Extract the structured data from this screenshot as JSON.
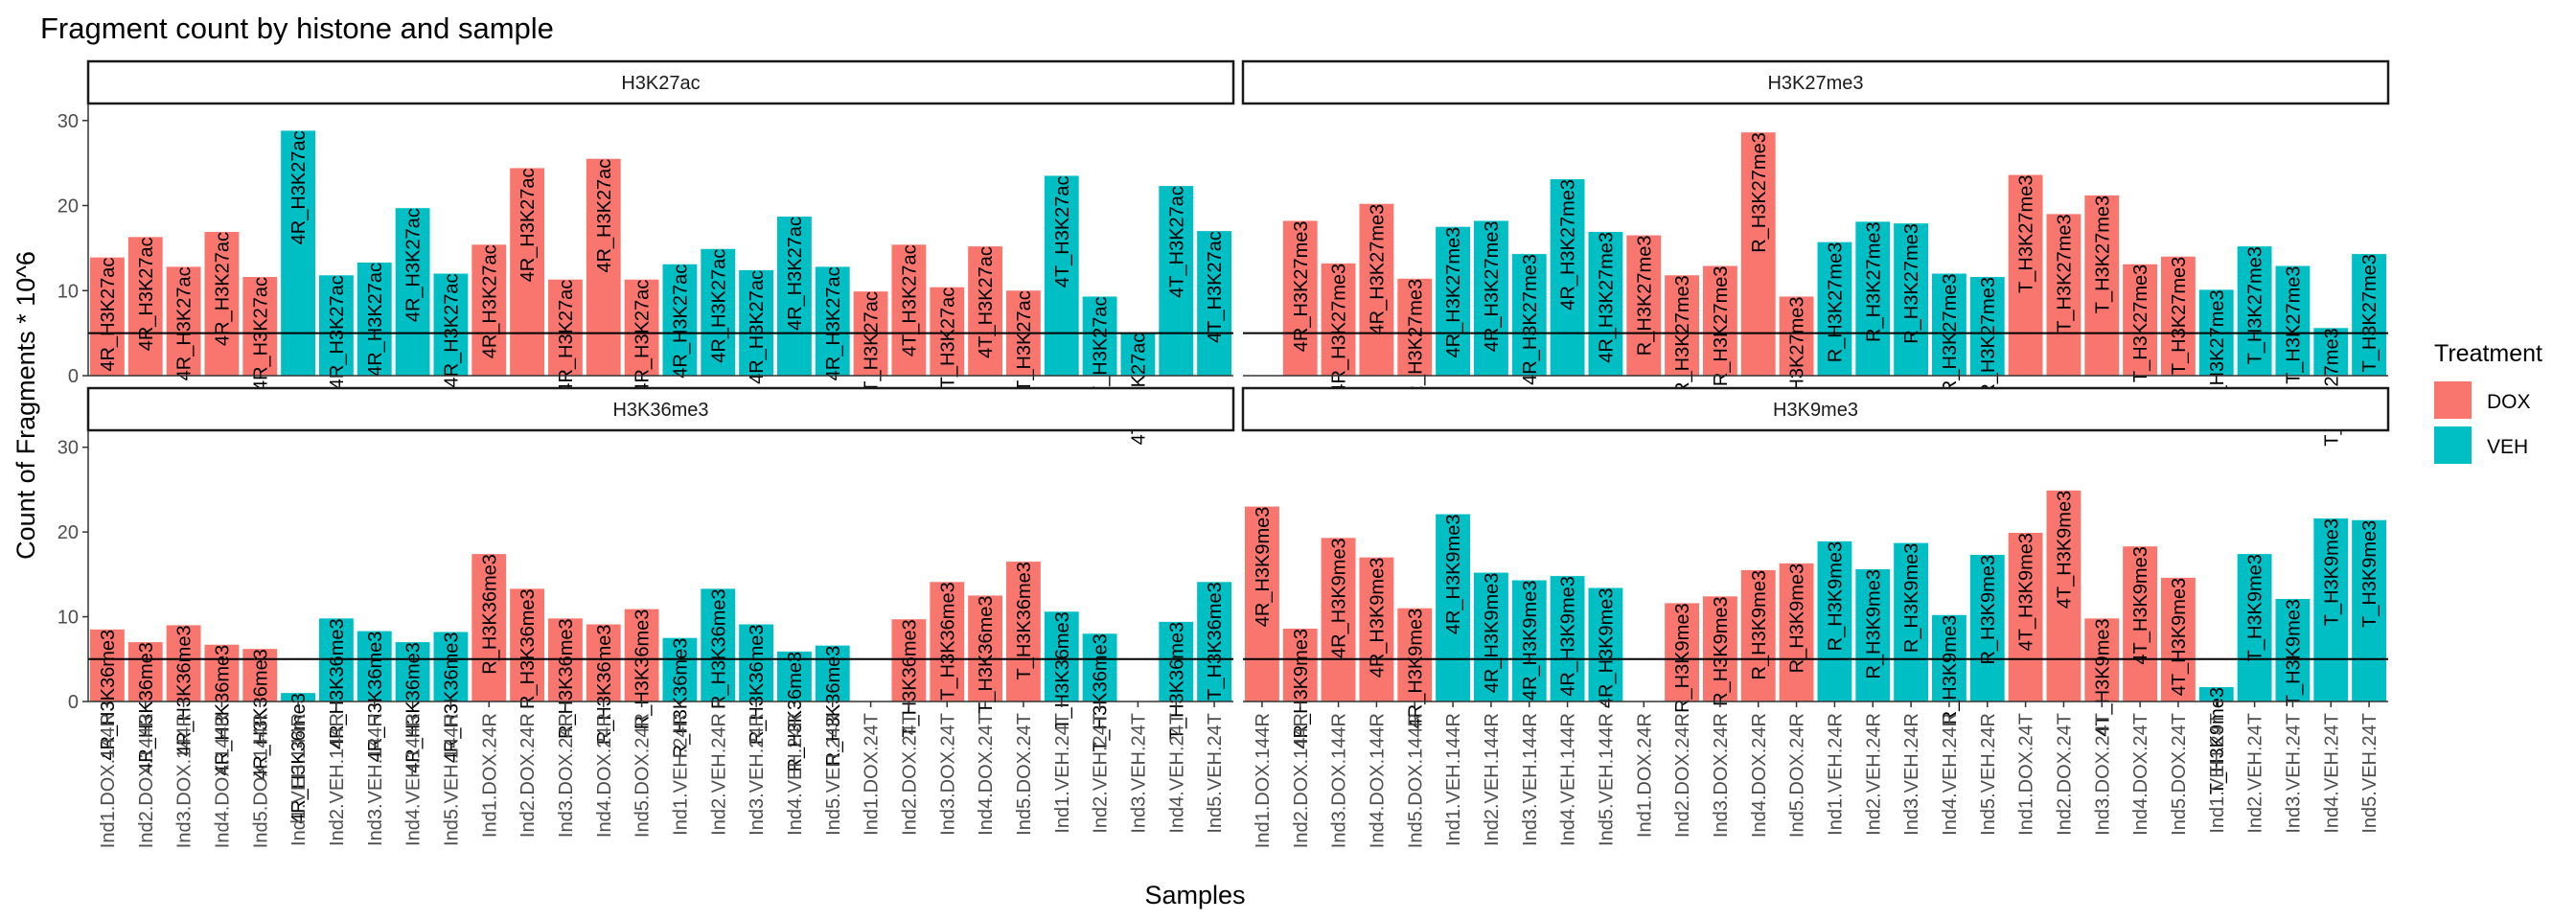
{
  "chart_data": {
    "type": "bar",
    "title": "Fragment count by histone and sample",
    "xlabel": "Samples",
    "ylabel": "Count of Fragments * 10^6",
    "ylim": [
      0,
      32
    ],
    "yticks": [
      0,
      10,
      20,
      30
    ],
    "reference_line": 5,
    "legend": {
      "title": "Treatment",
      "position": "right",
      "entries": [
        {
          "name": "DOX",
          "color": "#F8766D"
        },
        {
          "name": "VEH",
          "color": "#00BFC4"
        }
      ]
    },
    "facets_left": {
      "samples": [
        "Ind1.DOX.144R",
        "Ind2.DOX.144R",
        "Ind3.DOX.144R",
        "Ind4.DOX.144R",
        "Ind5.DOX.144R",
        "Ind1.VEH.144R",
        "Ind2.VEH.144R",
        "Ind3.VEH.144R",
        "Ind4.VEH.144R",
        "Ind5.VEH.144R",
        "Ind1.DOX.24R",
        "Ind2.DOX.24R",
        "Ind3.DOX.24R",
        "Ind4.DOX.24R",
        "Ind5.DOX.24R",
        "Ind1.VEH.24R",
        "Ind2.VEH.24R",
        "Ind3.VEH.24R",
        "Ind4.VEH.24R",
        "Ind5.VEH.24R",
        "Ind1.DOX.24T",
        "Ind2.DOX.24T",
        "Ind3.DOX.24T",
        "Ind4.DOX.24T",
        "Ind5.DOX.24T",
        "Ind1.VEH.24T",
        "Ind2.VEH.24T",
        "Ind3.VEH.24T",
        "Ind4.VEH.24T",
        "Ind5.VEH.24T"
      ],
      "treatment": [
        "DOX",
        "DOX",
        "DOX",
        "DOX",
        "DOX",
        "VEH",
        "VEH",
        "VEH",
        "VEH",
        "VEH",
        "DOX",
        "DOX",
        "DOX",
        "DOX",
        "DOX",
        "VEH",
        "VEH",
        "VEH",
        "VEH",
        "VEH",
        "DOX",
        "DOX",
        "DOX",
        "DOX",
        "DOX",
        "VEH",
        "VEH",
        "VEH",
        "VEH",
        "VEH"
      ]
    },
    "facets_right": {
      "samples": [
        "Ind1.DOX.144R",
        "Ind2.DOX.144R",
        "Ind3.DOX.144R",
        "Ind4.DOX.144R",
        "Ind5.DOX.144R",
        "Ind1.VEH.144R",
        "Ind2.VEH.144R",
        "Ind3.VEH.144R",
        "Ind4.VEH.144R",
        "Ind5.VEH.144R",
        "Ind1.DOX.24R",
        "Ind2.DOX.24R",
        "Ind3.DOX.24R",
        "Ind4.DOX.24R",
        "Ind5.DOX.24R",
        "Ind1.VEH.24R",
        "Ind2.VEH.24R",
        "Ind3.VEH.24R",
        "Ind4.VEH.24R",
        "Ind5.VEH.24R",
        "Ind1.DOX.24T",
        "Ind2.DOX.24T",
        "Ind3.DOX.24T",
        "Ind4.DOX.24T",
        "Ind5.DOX.24T",
        "Ind1.VEH.24T",
        "Ind2.VEH.24T",
        "Ind3.VEH.24T",
        "Ind4.VEH.24T",
        "Ind5.VEH.24T"
      ],
      "treatment": [
        "DOX",
        "DOX",
        "DOX",
        "DOX",
        "DOX",
        "VEH",
        "VEH",
        "VEH",
        "VEH",
        "VEH",
        "DOX",
        "DOX",
        "DOX",
        "DOX",
        "DOX",
        "VEH",
        "VEH",
        "VEH",
        "VEH",
        "VEH",
        "DOX",
        "DOX",
        "DOX",
        "DOX",
        "DOX",
        "VEH",
        "VEH",
        "VEH",
        "VEH",
        "VEH"
      ]
    },
    "panels": [
      {
        "name": "H3K27ac",
        "values": [
          13.9,
          16.3,
          12.8,
          16.9,
          11.6,
          28.8,
          11.8,
          13.3,
          19.7,
          12.0,
          15.4,
          24.4,
          11.3,
          25.5,
          11.3,
          13.1,
          14.9,
          12.4,
          18.7,
          12.8,
          9.9,
          15.4,
          10.4,
          15.2,
          10.0,
          23.5,
          9.3,
          5.0,
          22.3,
          17.0
        ],
        "labels": [
          "4R_H3K27ac",
          "4R_H3K27ac",
          "4R_H3K27ac",
          "4R_H3K27ac",
          "4R_H3K27ac",
          "4R_H3K27ac",
          "4R_H3K27ac",
          "4R_H3K27ac",
          "4R_H3K27ac",
          "4R_H3K27ac",
          "4R_H3K27ac",
          "4R_H3K27ac",
          "4R_H3K27ac",
          "4R_H3K27ac",
          "4R_H3K27ac",
          "4R_H3K27ac",
          "4R_H3K27ac",
          "4R_H3K27ac",
          "4R_H3K27ac",
          "4R_H3K27ac",
          "4T_H3K27ac",
          "4T_H3K27ac",
          "4T_H3K27ac",
          "4T_H3K27ac",
          "4T_H3K27ac",
          "4T_H3K27ac",
          "4T_H3K27ac",
          "4T_H3K27ac",
          "4T_H3K27ac",
          "4T_H3K27ac"
        ]
      },
      {
        "name": "H3K27me3",
        "values": [
          0,
          18.2,
          13.2,
          20.2,
          11.4,
          17.5,
          18.2,
          14.3,
          23.1,
          16.9,
          16.5,
          11.8,
          12.9,
          28.6,
          9.3,
          15.7,
          18.1,
          17.9,
          12.0,
          11.6,
          23.6,
          19.0,
          21.2,
          13.1,
          14.0,
          10.1,
          15.2,
          12.9,
          5.6,
          14.3
        ],
        "labels": [
          "",
          "4R_H3K27me3",
          "4R_H3K27me3",
          "4R_H3K27me3",
          "4R_H3K27me3",
          "4R_H3K27me3",
          "4R_H3K27me3",
          "4R_H3K27me3",
          "4R_H3K27me3",
          "4R_H3K27me3",
          "R_H3K27me3",
          "R_H3K27me3",
          "R_H3K27me3",
          "R_H3K27me3",
          "R_H3K27me3",
          "R_H3K27me3",
          "R_H3K27me3",
          "R_H3K27me3",
          "R_H3K27me3",
          "R_H3K27me3",
          "T_H3K27me3",
          "T_H3K27me3",
          "T_H3K27me3",
          "T_H3K27me3",
          "T_H3K27me3",
          "T_H3K27me3",
          "T_H3K27me3",
          "T_H3K27me3",
          "T_H3K27me3",
          "T_H3K27me3"
        ]
      },
      {
        "name": "H3K36me3",
        "values": [
          8.5,
          7.0,
          9.0,
          6.7,
          6.2,
          1.0,
          9.8,
          8.3,
          7.0,
          8.2,
          17.4,
          13.3,
          9.8,
          9.1,
          10.9,
          7.5,
          13.3,
          9.1,
          5.9,
          6.6,
          0,
          9.7,
          14.1,
          12.5,
          16.5,
          10.6,
          8.0,
          0,
          9.4,
          14.1
        ],
        "labels": [
          "4R_H3K36me3",
          "4R_H3K36me3",
          "4R_H3K36me3",
          "4R_H3K36me3",
          "4R_H3K36me3",
          "4R_H3K36me3",
          "4R_H3K36me3",
          "4R_H3K36me3",
          "4R_H3K36me3",
          "4R_H3K36me3",
          "R_H3K36me3",
          "R_H3K36me3",
          "R_H3K36me3",
          "R_H3K36me3",
          "R_H3K36me3",
          "R_H3K36me3",
          "R_H3K36me3",
          "R_H3K36me3",
          "R_H3K36me3",
          "R_H3K36me3",
          "",
          "T_H3K36me3",
          "T_H3K36me3",
          "T_H3K36me3",
          "T_H3K36me3",
          "T_H3K36me3",
          "T_H3K36me3",
          "",
          "T_H3K36me3",
          "T_H3K36me3"
        ]
      },
      {
        "name": "H3K9me3",
        "values": [
          23.0,
          8.6,
          19.3,
          17.0,
          11.0,
          22.1,
          15.2,
          14.3,
          14.8,
          13.4,
          0,
          11.6,
          12.4,
          15.5,
          16.3,
          18.9,
          15.6,
          18.7,
          10.2,
          17.3,
          19.9,
          24.9,
          9.8,
          18.3,
          14.6,
          1.7,
          17.4,
          12.1,
          21.6,
          21.4
        ],
        "labels": [
          "4R_H3K9me3",
          "4R_H3K9me3",
          "4R_H3K9me3",
          "4R_H3K9me3",
          "4R_H3K9me3",
          "4R_H3K9me3",
          "4R_H3K9me3",
          "4R_H3K9me3",
          "4R_H3K9me3",
          "4R_H3K9me3",
          "",
          "R_H3K9me3",
          "R_H3K9me3",
          "R_H3K9me3",
          "R_H3K9me3",
          "R_H3K9me3",
          "R_H3K9me3",
          "R_H3K9me3",
          "R_H3K9me3",
          "R_H3K9me3",
          "4T_H3K9me3",
          "4T_H3K9me3",
          "4T_H3K9me3",
          "4T_H3K9me3",
          "4T_H3K9me3",
          "T_H3K9me3",
          "T_H3K9me3",
          "T_H3K9me3",
          "T_H3K9me3",
          "T_H3K9me3"
        ]
      }
    ]
  }
}
